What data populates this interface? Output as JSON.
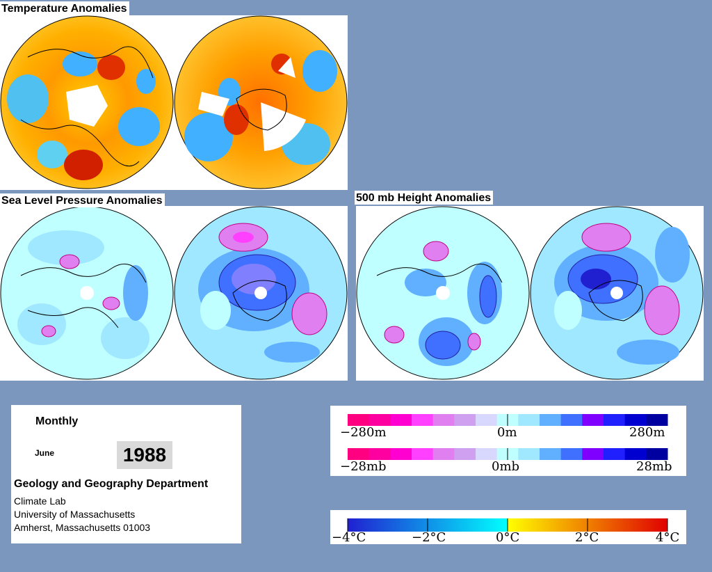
{
  "titles": {
    "temperature": "Temperature Anomalies",
    "slp": "Sea Level Pressure Anomalies",
    "height": "500 mb Height Anomalies"
  },
  "info": {
    "period": "Monthly",
    "month": "June",
    "year": "1988",
    "department": "Geology and Geography Department",
    "lab": "Climate Lab",
    "university": "University of Massachusetts",
    "address": "Amherst, Massachusetts 01003"
  },
  "scales": {
    "height": {
      "left": "−280m",
      "center": "0m",
      "right": "280m"
    },
    "pressure": {
      "left": "−28mb",
      "center": "0mb",
      "right": "28mb"
    },
    "temperature": [
      "−4°C",
      "−2°C",
      "0°C",
      "2°C",
      "4°C"
    ]
  },
  "colors": {
    "background": "#7b97bd",
    "anomaly_scale": [
      "#ff0080",
      "#ff00a0",
      "#ff00d0",
      "#ff40ff",
      "#e080f0",
      "#d0a0f0",
      "#d8d8ff",
      "#c0ffff",
      "#a0e8ff",
      "#60b0ff",
      "#4070ff",
      "#8000ff",
      "#2020ff",
      "#0000d0",
      "#0000a0"
    ],
    "temperature_scale_start": "#2020d0",
    "temperature_scale_mid": "#00ffff",
    "temperature_scale_yellow": "#ffff00",
    "temperature_scale_end": "#e00000"
  }
}
